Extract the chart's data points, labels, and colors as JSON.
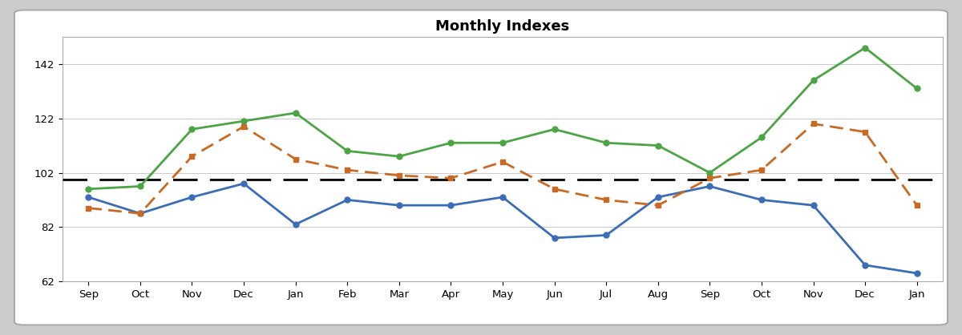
{
  "title": "Monthly Indexes",
  "x_labels": [
    "Sep",
    "Oct",
    "Nov",
    "Dec",
    "Jan",
    "Feb",
    "Mar",
    "Apr",
    "May",
    "Jun",
    "Jul",
    "Aug",
    "Sep",
    "Oct",
    "Nov",
    "Dec",
    "Jan"
  ],
  "occupancy_index": [
    93,
    87,
    93,
    98,
    83,
    92,
    90,
    90,
    93,
    78,
    79,
    93,
    97,
    92,
    90,
    68,
    65
  ],
  "adr_index": [
    96,
    97,
    118,
    121,
    124,
    110,
    108,
    113,
    113,
    118,
    113,
    112,
    102,
    115,
    136,
    148,
    133
  ],
  "revpar_index": [
    89,
    87,
    108,
    119,
    107,
    103,
    101,
    100,
    106,
    96,
    92,
    90,
    100,
    103,
    120,
    117,
    90
  ],
  "dashed_line_y": 99.5,
  "ylim": [
    62,
    152
  ],
  "yticks": [
    62,
    82,
    102,
    122,
    142
  ],
  "occupancy_color": "#3A6DB5",
  "adr_color": "#4BA544",
  "revpar_color": "#C96A24",
  "dashed_color": "#111111",
  "background_color": "#FFFFFF",
  "outer_background": "#CCCCCC",
  "grid_color": "#CCCCCC",
  "title_fontsize": 13,
  "legend_fontsize": 9,
  "tick_fontsize": 9.5,
  "linewidth": 2.0,
  "marker_size": 5
}
